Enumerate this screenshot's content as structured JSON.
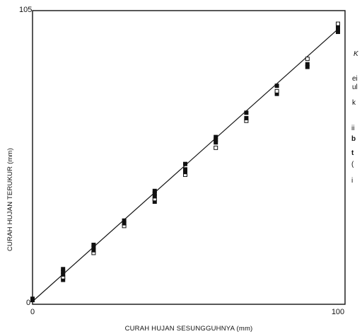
{
  "chart_data": {
    "type": "scatter",
    "xlabel": "CURAH HUJAN SESUNGGUHNYA (mm)",
    "ylabel": "CURAH HUJAN TERUKUR (mm)",
    "xlim": [
      0,
      100
    ],
    "ylim": [
      0,
      105
    ],
    "x_tick_labels": [
      "0",
      "100"
    ],
    "y_tick_labels": [
      "0",
      "105"
    ],
    "grid": false,
    "series": [
      {
        "x": [
          0,
          0,
          10,
          10,
          10,
          10,
          10,
          20,
          20,
          20,
          20,
          30,
          30,
          30,
          40,
          40,
          40,
          40,
          40,
          50,
          50,
          50,
          50,
          60,
          60,
          60,
          60,
          70,
          70,
          70,
          80,
          80,
          80,
          90,
          90,
          90,
          100,
          100,
          100,
          100
        ],
        "y": [
          0.5,
          1,
          8,
          9,
          10,
          11,
          12,
          18,
          19,
          20,
          21,
          28,
          29,
          30,
          37,
          38,
          39,
          40,
          41,
          47,
          48,
          49,
          51,
          57,
          59,
          60,
          61,
          67,
          68,
          70,
          77,
          78,
          80,
          87,
          88,
          90,
          100,
          101,
          102,
          103
        ]
      }
    ],
    "fit_line": {
      "x": [
        0,
        100
      ],
      "y": [
        0,
        101
      ]
    }
  },
  "side_text": [
    "K",
    "ei",
    "ul",
    "k",
    "ii",
    "b",
    "t",
    "(",
    "i"
  ],
  "colors": {
    "ink": "#111111",
    "background": "#ffffff"
  }
}
